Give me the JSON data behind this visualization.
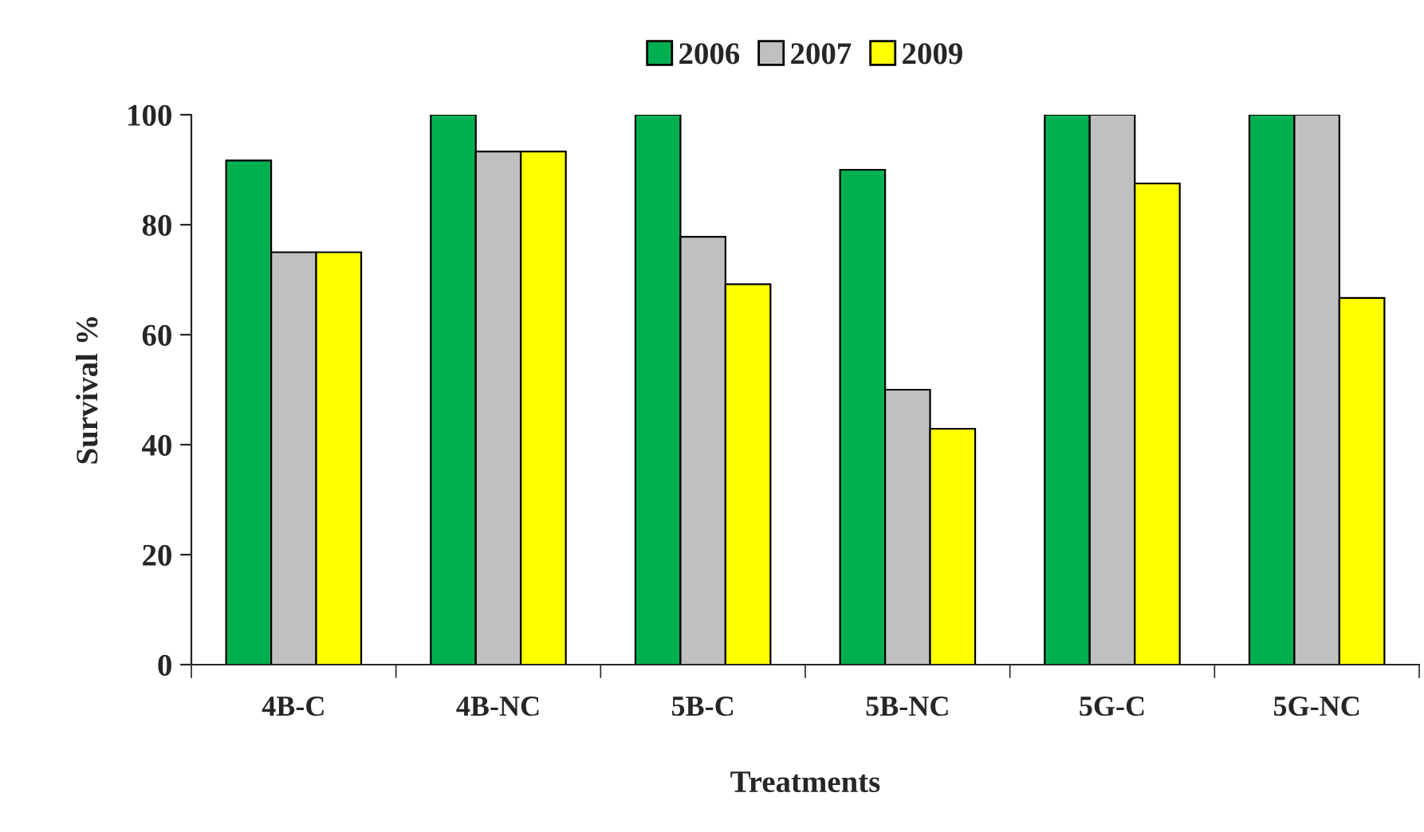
{
  "chart_data": {
    "type": "bar",
    "xlabel": "Treatments",
    "ylabel": "Survival %",
    "categories": [
      "4B-C",
      "4B-NC",
      "5B-C",
      "5B-NC",
      "5G-C",
      "5G-NC"
    ],
    "series": [
      {
        "name": "2006",
        "color": "#00b050",
        "values": [
          91.7,
          100,
          100,
          90,
          100,
          100
        ]
      },
      {
        "name": "2007",
        "color": "#c0c0c0",
        "values": [
          75,
          93.3,
          77.8,
          50,
          100,
          100
        ]
      },
      {
        "name": "2009",
        "color": "#ffff00",
        "values": [
          75,
          93.3,
          69.2,
          42.9,
          87.5,
          66.7
        ]
      }
    ],
    "ylim": [
      0,
      100
    ],
    "yticks": [
      0,
      20,
      40,
      60,
      80,
      100
    ],
    "grid": false,
    "legend": "top"
  }
}
